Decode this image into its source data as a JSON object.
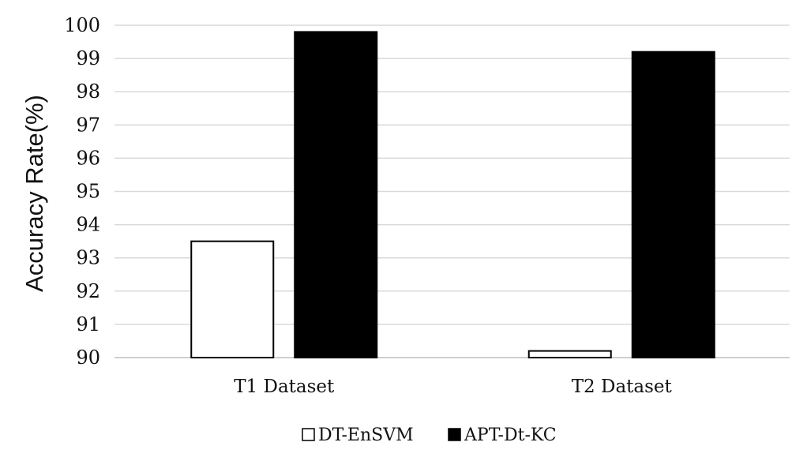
{
  "chart_data": {
    "type": "bar",
    "title": "",
    "xlabel": "",
    "ylabel": "Accuracy Rate(%)",
    "ylim": [
      90,
      100
    ],
    "yticks": [
      90,
      91,
      92,
      93,
      94,
      95,
      96,
      97,
      98,
      99,
      100
    ],
    "grid": true,
    "legend_position": "bottom",
    "categories": [
      "T1 Dataset",
      "T2 Dataset"
    ],
    "series": [
      {
        "name": "DT-EnSVM",
        "values": [
          93.5,
          90.2
        ],
        "fill": "#ffffff",
        "stroke": "#000000"
      },
      {
        "name": "APT-Dt-KC",
        "values": [
          99.8,
          99.2
        ],
        "fill": "#000000",
        "stroke": "#000000"
      }
    ]
  }
}
